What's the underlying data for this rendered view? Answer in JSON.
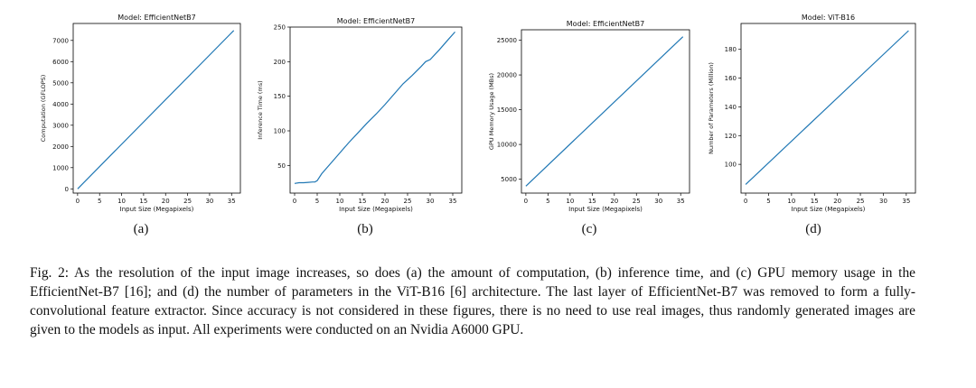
{
  "chart_data": [
    {
      "type": "line",
      "title": "Model: EfficientNetB7",
      "xlabel": "Input Size (Megapixels)",
      "ylabel": "Computation (GFLOPS)",
      "xlim": [
        -1,
        37
      ],
      "ylim": [
        -200,
        7800
      ],
      "xticks": [
        0,
        5,
        10,
        15,
        20,
        25,
        30,
        35
      ],
      "yticks": [
        0,
        1000,
        2000,
        3000,
        4000,
        5000,
        6000,
        7000
      ],
      "grid": false,
      "series": [
        {
          "x": [
            0,
            35.5
          ],
          "y": [
            0,
            7470
          ]
        }
      ],
      "color": "#1f77b4",
      "sublabel": "(a)"
    },
    {
      "type": "line",
      "title": "Model: EfficientNetB7",
      "xlabel": "Input Size (Megapixels)",
      "ylabel": "Inference Time (ms)",
      "xlim": [
        -1,
        37
      ],
      "ylim": [
        10,
        250
      ],
      "xticks": [
        0,
        5,
        10,
        15,
        20,
        25,
        30,
        35
      ],
      "yticks": [
        50,
        100,
        150,
        200,
        250
      ],
      "grid": false,
      "series": [
        {
          "x": [
            0,
            1,
            2,
            3,
            4,
            4.5,
            5,
            6,
            8,
            10,
            12,
            14,
            16,
            18,
            20,
            22,
            24,
            26,
            28,
            29,
            30,
            32,
            34,
            35.5
          ],
          "y": [
            24,
            25,
            25,
            25.5,
            26,
            26,
            28,
            38,
            53,
            68,
            83,
            97,
            111,
            124,
            138,
            153,
            168,
            180,
            193,
            200,
            203,
            217,
            232,
            243
          ]
        }
      ],
      "color": "#1f77b4",
      "sublabel": "(b)"
    },
    {
      "type": "line",
      "title": "Model: EfficientNetB7",
      "xlabel": "Input Size (Megapixels)",
      "ylabel": "GPU Memory Usage (MBs)",
      "xlim": [
        -1,
        37
      ],
      "ylim": [
        3000,
        26500
      ],
      "xticks": [
        0,
        5,
        10,
        15,
        20,
        25,
        30,
        35
      ],
      "yticks": [
        5000,
        10000,
        15000,
        20000,
        25000
      ],
      "grid": false,
      "series": [
        {
          "x": [
            0,
            35.5
          ],
          "y": [
            4000,
            25500
          ]
        }
      ],
      "color": "#1f77b4",
      "sublabel": "(c)"
    },
    {
      "type": "line",
      "title": "Model: ViT-B16",
      "xlabel": "Input Size (Megapixels)",
      "ylabel": "Number of Parameters (Million)",
      "xlim": [
        -1,
        37
      ],
      "ylim": [
        80,
        198
      ],
      "xticks": [
        0,
        5,
        10,
        15,
        20,
        25,
        30,
        35
      ],
      "yticks": [
        100,
        120,
        140,
        160,
        180
      ],
      "grid": false,
      "series": [
        {
          "x": [
            0,
            35.5
          ],
          "y": [
            86,
            193
          ]
        }
      ],
      "color": "#1f77b4",
      "sublabel": "(d)"
    }
  ],
  "caption": "Fig. 2: As the resolution of the input image increases, so does (a) the amount of computation, (b) inference time, and (c) GPU memory usage in the EfficientNet-B7 [16]; and (d) the number of parameters in the ViT-B16 [6] architecture. The last layer of EfficientNet-B7 was removed to form a fully-convolutional feature extractor. Since accuracy is not considered in these figures, there is no need to use real images, thus randomly generated images are given to the models as input. All experiments were conducted on an Nvidia A6000 GPU."
}
